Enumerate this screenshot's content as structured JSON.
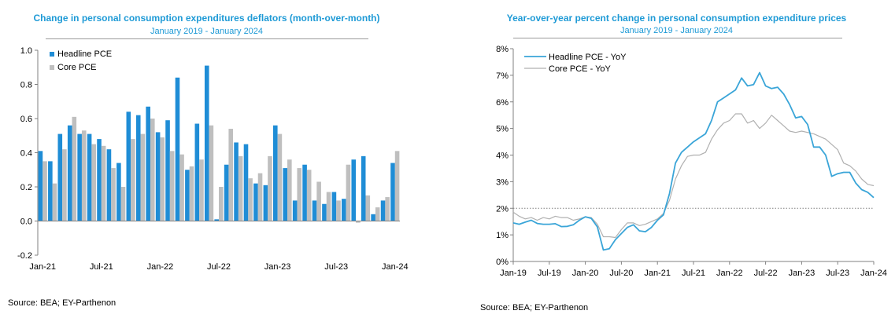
{
  "source_left": "Source: BEA; EY-Parthenon",
  "source_right": "Source: BEA; EY-Parthenon",
  "colors": {
    "headline": "#1F8DD6",
    "core": "#BFBFBF",
    "headline_line": "#3AA5D8",
    "core_line": "#B0B0B0",
    "title": "#1E9AD6",
    "reference": "#808080"
  },
  "chart_data": [
    {
      "type": "bar",
      "title": "Change in personal consumption expenditures deflators (month-over-month)",
      "subtitle": "January 2019 - January 2024",
      "ylim": [
        -0.2,
        1.0
      ],
      "yticks": [
        -0.2,
        0.0,
        0.2,
        0.4,
        0.6,
        0.8,
        1.0
      ],
      "ytick_labels": [
        "-0.2",
        "0.0",
        "0.2",
        "0.4",
        "0.6",
        "0.8",
        "1.0"
      ],
      "xtick_labels": [
        "Jan-21",
        "Jul-21",
        "Jan-22",
        "Jul-22",
        "Jan-23",
        "Jul-23",
        "Jan-24"
      ],
      "xtick_index": [
        0,
        6,
        12,
        18,
        24,
        30,
        36
      ],
      "legend": [
        "Headline PCE",
        "Core PCE"
      ],
      "categories": [
        "Jan-21",
        "Feb-21",
        "Mar-21",
        "Apr-21",
        "May-21",
        "Jun-21",
        "Jul-21",
        "Aug-21",
        "Sep-21",
        "Oct-21",
        "Nov-21",
        "Dec-21",
        "Jan-22",
        "Feb-22",
        "Mar-22",
        "Apr-22",
        "May-22",
        "Jun-22",
        "Jul-22",
        "Aug-22",
        "Sep-22",
        "Oct-22",
        "Nov-22",
        "Dec-22",
        "Jan-23",
        "Feb-23",
        "Mar-23",
        "Apr-23",
        "May-23",
        "Jun-23",
        "Jul-23",
        "Aug-23",
        "Sep-23",
        "Oct-23",
        "Nov-23",
        "Dec-23",
        "Jan-24"
      ],
      "series": [
        {
          "name": "Headline PCE",
          "values": [
            0.41,
            0.35,
            0.51,
            0.56,
            0.51,
            0.51,
            0.48,
            0.42,
            0.34,
            0.64,
            0.62,
            0.67,
            0.52,
            0.59,
            0.84,
            0.3,
            0.57,
            0.91,
            0.01,
            0.33,
            0.46,
            0.45,
            0.22,
            0.21,
            0.56,
            0.31,
            0.12,
            0.33,
            0.12,
            0.1,
            0.17,
            0.13,
            0.36,
            0.38,
            0.04,
            0.12,
            0.34
          ]
        },
        {
          "name": "Core PCE",
          "values": [
            0.35,
            0.22,
            0.42,
            0.61,
            0.53,
            0.45,
            0.44,
            0.31,
            0.2,
            0.48,
            0.51,
            0.6,
            0.49,
            0.41,
            0.39,
            0.32,
            0.36,
            0.56,
            0.2,
            0.54,
            0.38,
            0.25,
            0.28,
            0.38,
            0.51,
            0.36,
            0.31,
            0.3,
            0.23,
            0.17,
            0.12,
            0.33,
            -0.01,
            0.15,
            0.08,
            0.14,
            0.41
          ]
        }
      ]
    },
    {
      "type": "line",
      "title": "Year-over-year percent change in personal consumption expenditure prices",
      "subtitle": "January 2019 - January 2024",
      "ylim": [
        0,
        8
      ],
      "yticks": [
        0,
        1,
        2,
        3,
        4,
        5,
        6,
        7,
        8
      ],
      "ytick_labels": [
        "0%",
        "1%",
        "2%",
        "3%",
        "4%",
        "5%",
        "6%",
        "7%",
        "8%"
      ],
      "xtick_labels": [
        "Jan-19",
        "Jul-19",
        "Jan-20",
        "Jul-20",
        "Jan-21",
        "Jul-21",
        "Jan-22",
        "Jul-22",
        "Jan-23",
        "Jul-23",
        "Jan-24"
      ],
      "xtick_index": [
        0,
        6,
        12,
        18,
        24,
        30,
        36,
        42,
        48,
        54,
        60
      ],
      "reference_line": 2.0,
      "legend": [
        "Headline PCE - YoY",
        "Core PCE - YoY"
      ],
      "series": [
        {
          "name": "Headline PCE - YoY",
          "values": [
            1.45,
            1.4,
            1.48,
            1.55,
            1.43,
            1.4,
            1.4,
            1.42,
            1.31,
            1.32,
            1.38,
            1.55,
            1.68,
            1.62,
            1.3,
            0.43,
            0.48,
            0.82,
            1.05,
            1.28,
            1.38,
            1.15,
            1.12,
            1.28,
            1.55,
            1.75,
            2.55,
            3.7,
            4.1,
            4.3,
            4.5,
            4.65,
            4.8,
            5.3,
            6.0,
            6.15,
            6.3,
            6.45,
            6.9,
            6.6,
            6.65,
            7.1,
            6.6,
            6.5,
            6.55,
            6.3,
            5.9,
            5.4,
            5.45,
            5.15,
            4.3,
            4.3,
            4.0,
            3.2,
            3.3,
            3.35,
            3.35,
            2.95,
            2.7,
            2.6,
            2.4
          ]
        },
        {
          "name": "Core PCE - YoY",
          "values": [
            1.85,
            1.7,
            1.6,
            1.65,
            1.55,
            1.65,
            1.6,
            1.7,
            1.65,
            1.65,
            1.55,
            1.6,
            1.68,
            1.65,
            1.4,
            0.93,
            0.93,
            0.9,
            1.2,
            1.45,
            1.45,
            1.35,
            1.4,
            1.5,
            1.6,
            1.8,
            2.3,
            3.1,
            3.6,
            3.95,
            4.0,
            4.0,
            4.1,
            4.6,
            4.95,
            5.2,
            5.3,
            5.55,
            5.55,
            5.2,
            5.3,
            5.0,
            5.2,
            5.5,
            5.3,
            5.1,
            4.9,
            4.85,
            4.9,
            4.85,
            4.8,
            4.7,
            4.6,
            4.4,
            4.2,
            3.7,
            3.6,
            3.4,
            3.1,
            2.9,
            2.85
          ]
        }
      ]
    }
  ]
}
